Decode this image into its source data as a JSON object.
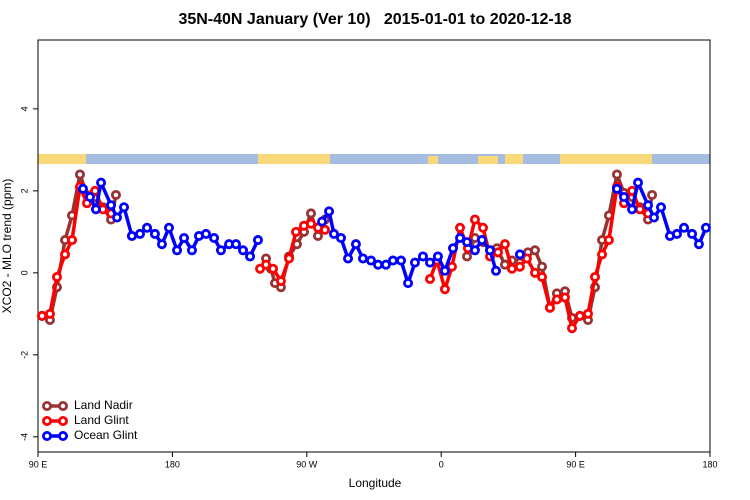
{
  "chart_data": {
    "type": "line",
    "title": "35N-40N January (Ver 10)   2015-01-01 to 2020-12-18",
    "xlabel": "Longitude",
    "ylabel": "XCO2 - MLO trend (ppm)",
    "xlim": [
      90,
      540
    ],
    "ylim": [
      -4.37,
      5.68
    ],
    "xticks": [
      {
        "value": 90,
        "label": "90 E"
      },
      180,
      {
        "value": 270,
        "label": "90 W"
      },
      {
        "value": 360,
        "label": "0"
      },
      {
        "value": 450,
        "label": "90 E"
      },
      {
        "value": 540,
        "label": "180"
      }
    ],
    "yticks": [
      -4,
      -2,
      0,
      2,
      4
    ],
    "legend": "bottom-left",
    "series": [
      {
        "name": "Land Nadir",
        "color": "#993333",
        "x": [
          92.7,
          98.0,
          102.7,
          108.1,
          112.8,
          118.1,
          122.8,
          128.2,
          133.5,
          138.9,
          142.2,
          190,
          242.7,
          246.0,
          248.7,
          252.7,
          258.1,
          263.4,
          268.1,
          272.8,
          277.5,
          282.2,
          330,
          377.3,
          382.6,
          388.0,
          392.7,
          397.3,
          402.7,
          407.4,
          412.7,
          418.1,
          422.8,
          427.5,
          432.8,
          437.5,
          442.9,
          447.6,
          452.9,
          458.3,
          463.0,
          467.7,
          472.3,
          477.7,
          482.4,
          487.8,
          493.1,
          498.5,
          501.2
        ],
        "values": [
          -1.05,
          -1.15,
          -0.35,
          0.8,
          1.4,
          2.4,
          1.9,
          1.85,
          1.6,
          1.3,
          1.9,
          null,
          0.35,
          0.1,
          -0.25,
          -0.35,
          0.4,
          0.7,
          1.0,
          1.45,
          0.9,
          1.3,
          null,
          0.4,
          0.85,
          0.75,
          0.55,
          0.6,
          0.2,
          0.3,
          0.25,
          0.5,
          0.55,
          0.15,
          -0.85,
          -0.5,
          -0.45,
          -1.1,
          -1.05,
          -1.15,
          -0.35,
          0.8,
          1.4,
          2.4,
          1.95,
          1.85,
          1.6,
          1.3,
          1.9
        ]
      },
      {
        "name": "Land Glint",
        "color": "#ff0000",
        "x": [
          92.7,
          98.0,
          102.7,
          108.1,
          112.8,
          118.1,
          122.8,
          128.2,
          133.5,
          138.9,
          190,
          238.7,
          242.7,
          247.4,
          252.7,
          258.1,
          262.8,
          268.1,
          272.8,
          277.5,
          282.2,
          320,
          352.5,
          357.2,
          362.5,
          367.2,
          372.6,
          377.9,
          382.6,
          388.0,
          392.7,
          398.0,
          402.7,
          407.4,
          412.7,
          417.4,
          422.8,
          427.5,
          432.8,
          437.5,
          442.9,
          447.6,
          452.9,
          458.3,
          463.0,
          467.7,
          472.3,
          477.7,
          482.4,
          487.8,
          493.1,
          498.5
        ],
        "values": [
          -1.05,
          -1.0,
          -0.1,
          0.45,
          0.8,
          2.1,
          1.7,
          2.0,
          1.55,
          1.45,
          null,
          0.1,
          0.2,
          0.1,
          -0.2,
          0.35,
          1.0,
          1.15,
          1.2,
          1.1,
          1.05,
          null,
          -0.15,
          0.3,
          -0.4,
          0.15,
          1.1,
          0.6,
          1.3,
          1.1,
          0.4,
          0.5,
          0.7,
          0.1,
          0.15,
          0.35,
          0.0,
          -0.1,
          -0.85,
          -0.65,
          -0.6,
          -1.35,
          -1.05,
          -1.0,
          -0.1,
          0.45,
          0.8,
          2.1,
          1.7,
          2.0,
          1.55,
          1.45
        ]
      },
      {
        "name": "Ocean Glint",
        "color": "#0000ff",
        "x": [
          120.1,
          124.8,
          128.8,
          132.2,
          138.9,
          142.9,
          147.6,
          152.9,
          158.3,
          163.0,
          168.3,
          173.0,
          177.7,
          183.1,
          187.8,
          193.1,
          197.8,
          202.5,
          207.9,
          212.5,
          217.9,
          222.6,
          227.3,
          232.0,
          237.3,
          260,
          280.2,
          284.9,
          288.2,
          292.9,
          297.6,
          302.9,
          307.6,
          313.0,
          317.7,
          323.0,
          327.7,
          333.1,
          337.8,
          342.4,
          347.8,
          352.5,
          357.8,
          362.5,
          367.9,
          372.6,
          377.3,
          382.6,
          387.3,
          392.7,
          396.7,
          405,
          412.7,
          450,
          477.7,
          482.4,
          487.8,
          491.8,
          498.5,
          502.5,
          507.2,
          513.2,
          517.9,
          522.6,
          528.0,
          532.6,
          537.3
        ],
        "values": [
          2.05,
          1.85,
          1.55,
          2.2,
          1.65,
          1.35,
          1.6,
          0.9,
          0.95,
          1.1,
          0.95,
          0.7,
          1.1,
          0.55,
          0.85,
          0.55,
          0.9,
          0.95,
          0.85,
          0.55,
          0.7,
          0.7,
          0.55,
          0.4,
          0.8,
          null,
          1.25,
          1.5,
          0.95,
          0.85,
          0.35,
          0.7,
          0.35,
          0.3,
          0.2,
          0.2,
          0.3,
          0.3,
          -0.25,
          0.25,
          0.4,
          0.25,
          0.4,
          0.05,
          0.6,
          0.85,
          0.75,
          0.55,
          0.8,
          0.55,
          0.05,
          null,
          0.45,
          null,
          2.05,
          1.85,
          1.55,
          2.2,
          1.65,
          1.35,
          1.6,
          0.9,
          0.95,
          1.1,
          0.95,
          0.7,
          1.1
        ]
      }
    ]
  }
}
